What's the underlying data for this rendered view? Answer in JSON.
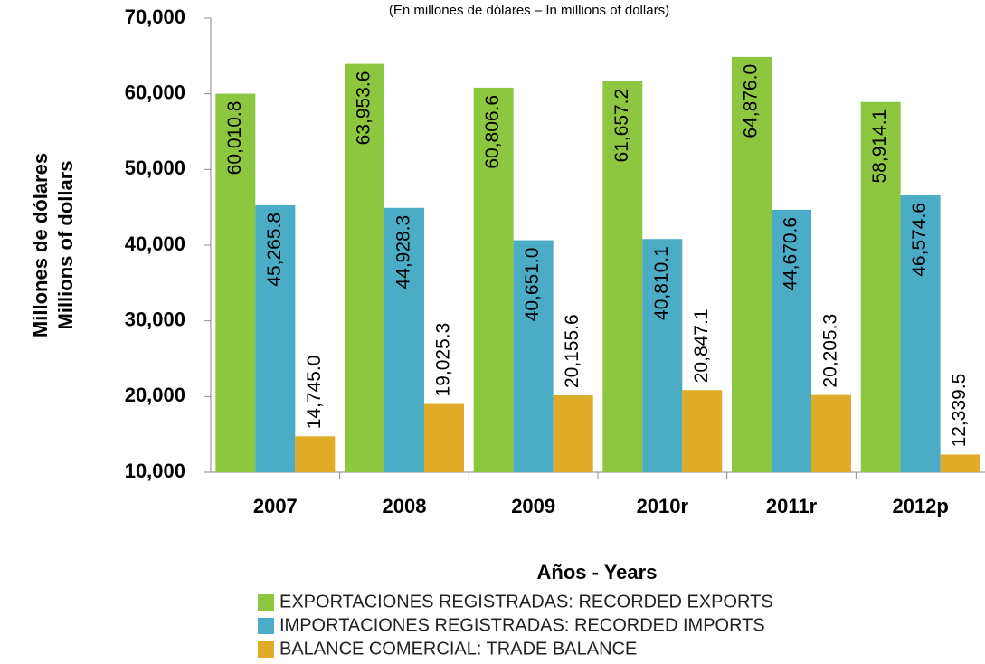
{
  "chart_data": {
    "type": "bar",
    "subtitle": "(En millones de dólares – In millions of dollars)",
    "ylabel": [
      "Millones de dólares",
      "Millions of dollars"
    ],
    "xlabel": "Años - Years",
    "categories": [
      "2007",
      "2008",
      "2009",
      "2010r",
      "2011r",
      "2012p"
    ],
    "series": [
      {
        "name": "EXPORTACIONES REGISTRADAS: RECORDED EXPORTS",
        "color": "#8dc63f",
        "values": [
          60010.8,
          63953.6,
          60806.6,
          61657.2,
          64876.0,
          58914.1
        ],
        "value_labels": [
          "60,010.8",
          "63,953.6",
          "60,806.6",
          "61,657.2",
          "64,876.0",
          "58,914.1"
        ]
      },
      {
        "name": "IMPORTACIONES REGISTRADAS: RECORDED IMPORTS",
        "color": "#4bacc6",
        "values": [
          45265.8,
          44928.3,
          40651.0,
          40810.1,
          44670.6,
          46574.6
        ],
        "value_labels": [
          "45,265.8",
          "44,928.3",
          "40,651.0",
          "40,810.1",
          "44,670.6",
          "46,574.6"
        ]
      },
      {
        "name": "BALANCE COMERCIAL: TRADE BALANCE",
        "color": "#e0ac28",
        "values": [
          14745.0,
          19025.3,
          20155.6,
          20847.1,
          20205.3,
          12339.5
        ],
        "value_labels": [
          "14,745.0",
          "19,025.3",
          "20,155.6",
          "20,847.1",
          "20,205.3",
          "12,339.5"
        ]
      }
    ],
    "ylim": [
      10000,
      70000
    ],
    "yticks": [
      {
        "value": 10000,
        "label": "10,000"
      },
      {
        "value": 20000,
        "label": "20,000"
      },
      {
        "value": 30000,
        "label": "30,000"
      },
      {
        "value": 40000,
        "label": "40,000"
      },
      {
        "value": 50000,
        "label": "50,000"
      },
      {
        "value": 60000,
        "label": "60,000"
      },
      {
        "value": 70000,
        "label": "70,000"
      }
    ],
    "grid": false
  }
}
